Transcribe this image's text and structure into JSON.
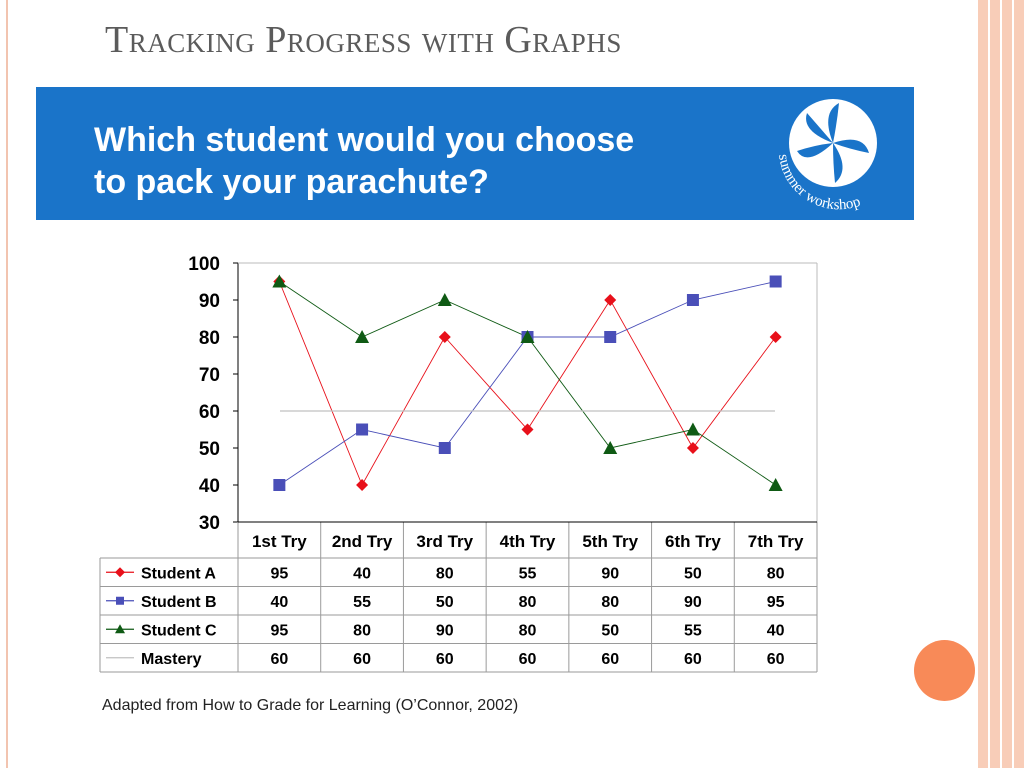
{
  "slide": {
    "title": "Tracking Progress with Graphs",
    "question_line1": "Which student would you choose",
    "question_line2": "to pack your parachute?",
    "logo_text": "summer workshop",
    "source_note": "Adapted from How  to Grade for Learning (O’Connor, 2002)"
  },
  "colors": {
    "banner": "#1a74c9",
    "student_a": "#e8101a",
    "student_b": "#4a4fb8",
    "student_c": "#0f5a14",
    "mastery": "#c0c0c0",
    "accent_circle": "#f88a58",
    "side_strip": "#f8cdb8"
  },
  "chart_data": {
    "type": "line",
    "categories": [
      "1st Try",
      "2nd Try",
      "3rd Try",
      "4th Try",
      "5th Try",
      "6th Try",
      "7th Try"
    ],
    "ylim": [
      30,
      100
    ],
    "yticks": [
      "100",
      "90",
      "80",
      "70",
      "60",
      "50",
      "40",
      "30"
    ],
    "grid": false,
    "legend": "table-below",
    "series": [
      {
        "name": "Student A",
        "marker": "diamond",
        "values": [
          95,
          40,
          80,
          55,
          90,
          50,
          80
        ]
      },
      {
        "name": "Student B",
        "marker": "square",
        "values": [
          40,
          55,
          50,
          80,
          80,
          90,
          95
        ]
      },
      {
        "name": "Student C",
        "marker": "triangle",
        "values": [
          95,
          80,
          90,
          80,
          50,
          55,
          40
        ]
      },
      {
        "name": "Mastery",
        "marker": "none",
        "values": [
          60,
          60,
          60,
          60,
          60,
          60,
          60
        ]
      }
    ]
  }
}
